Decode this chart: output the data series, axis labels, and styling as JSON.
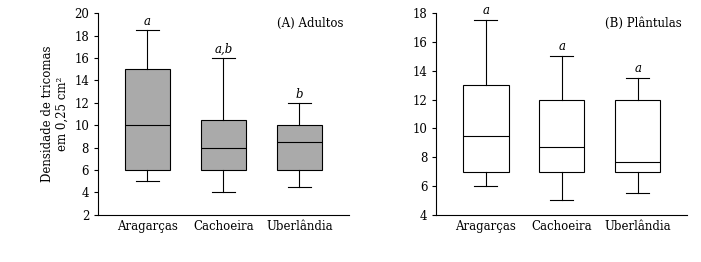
{
  "panel_A": {
    "title": "(A) Adultos",
    "categories": [
      "Aragarças",
      "Cachoeira",
      "Uberlândia"
    ],
    "box_data": [
      {
        "whislo": 5.0,
        "q1": 6.0,
        "med": 10.0,
        "q3": 15.0,
        "whishi": 18.5
      },
      {
        "whislo": 4.0,
        "q1": 6.0,
        "med": 8.0,
        "q3": 10.5,
        "whishi": 16.0
      },
      {
        "whislo": 4.5,
        "q1": 6.0,
        "med": 8.5,
        "q3": 10.0,
        "whishi": 12.0
      }
    ],
    "letters": [
      "a",
      "a,b",
      "b"
    ],
    "ylim": [
      2,
      20
    ],
    "yticks": [
      2,
      4,
      6,
      8,
      10,
      12,
      14,
      16,
      18,
      20
    ],
    "ylabel": "Densidade de tricomas\nem 0,25 cm²",
    "box_color": "#aaaaaa"
  },
  "panel_B": {
    "title": "(B) Plântulas",
    "categories": [
      "Aragarças",
      "Cachoeira",
      "Uberlândia"
    ],
    "box_data": [
      {
        "whislo": 6.0,
        "q1": 7.0,
        "med": 9.5,
        "q3": 13.0,
        "whishi": 17.5
      },
      {
        "whislo": 5.0,
        "q1": 7.0,
        "med": 8.7,
        "q3": 12.0,
        "whishi": 15.0
      },
      {
        "whislo": 5.5,
        "q1": 7.0,
        "med": 7.7,
        "q3": 12.0,
        "whishi": 13.5
      }
    ],
    "letters": [
      "a",
      "a",
      "a"
    ],
    "ylim": [
      4,
      18
    ],
    "yticks": [
      4,
      6,
      8,
      10,
      12,
      14,
      16,
      18
    ],
    "ylabel": "",
    "box_color": "#ffffff"
  },
  "fig_bgcolor": "#ffffff",
  "font_size": 8.5,
  "title_fontsize": 8.5,
  "letter_fontsize": 8.5,
  "linewidth": 0.8
}
